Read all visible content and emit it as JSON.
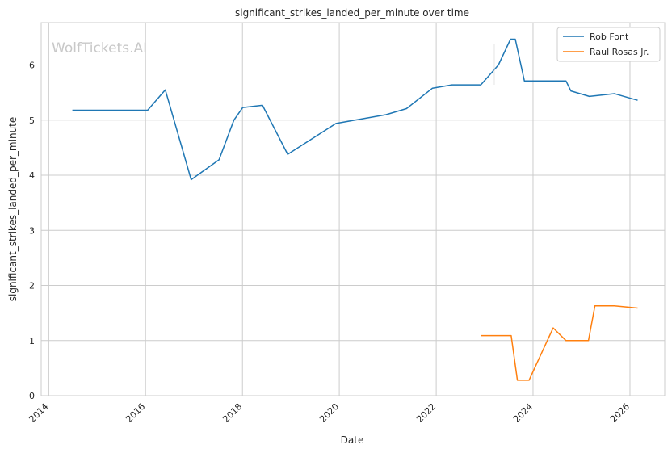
{
  "chart_data": {
    "type": "line",
    "title": "significant_strikes_landed_per_minute over time",
    "xlabel": "Date",
    "ylabel": "significant_strikes_landed_per_minute",
    "watermark": "WolfTickets.AI",
    "grid": true,
    "legend_position": "top-right",
    "xlim": [
      "2013-11-05",
      "2026-09-20"
    ],
    "ylim": [
      0,
      6.77
    ],
    "x_ticks": [
      "2014",
      "2016",
      "2018",
      "2020",
      "2022",
      "2024",
      "2026"
    ],
    "y_ticks": [
      "0",
      "1",
      "2",
      "3",
      "4",
      "5",
      "6"
    ],
    "series": [
      {
        "name": "Rob Font",
        "color": "#1f77b4",
        "x": [
          "2014-06-28",
          "2016-01-17",
          "2016-05-29",
          "2016-12-10",
          "2017-07-08",
          "2017-10-28",
          "2018-01-03",
          "2018-06-01",
          "2018-12-08",
          "2019-12-07",
          "2020-12-19",
          "2021-05-22",
          "2021-12-04",
          "2022-04-30",
          "2022-12-03",
          "2023-04-15",
          "2023-07-15",
          "2023-08-20",
          "2023-10-28",
          "2024-09-06",
          "2024-10-12",
          "2025-03-01",
          "2025-09-06",
          "2026-02-28"
        ],
        "y": [
          5.18,
          5.18,
          5.55,
          3.92,
          4.28,
          5.0,
          5.23,
          5.27,
          4.38,
          4.94,
          5.1,
          5.21,
          5.58,
          5.64,
          5.64,
          6.0,
          6.47,
          6.47,
          5.71,
          5.71,
          5.53,
          5.43,
          5.48,
          5.36
        ]
      },
      {
        "name": "Raul Rosas Jr.",
        "color": "#ff7f0e",
        "x": [
          "2022-12-03",
          "2023-07-20",
          "2023-09-05",
          "2023-12-02",
          "2024-06-01",
          "2024-09-06",
          "2025-02-22",
          "2025-04-12",
          "2025-09-06",
          "2026-02-28"
        ],
        "y": [
          1.09,
          1.09,
          0.28,
          0.28,
          1.23,
          1.0,
          1.0,
          1.63,
          1.63,
          1.59
        ]
      }
    ]
  }
}
